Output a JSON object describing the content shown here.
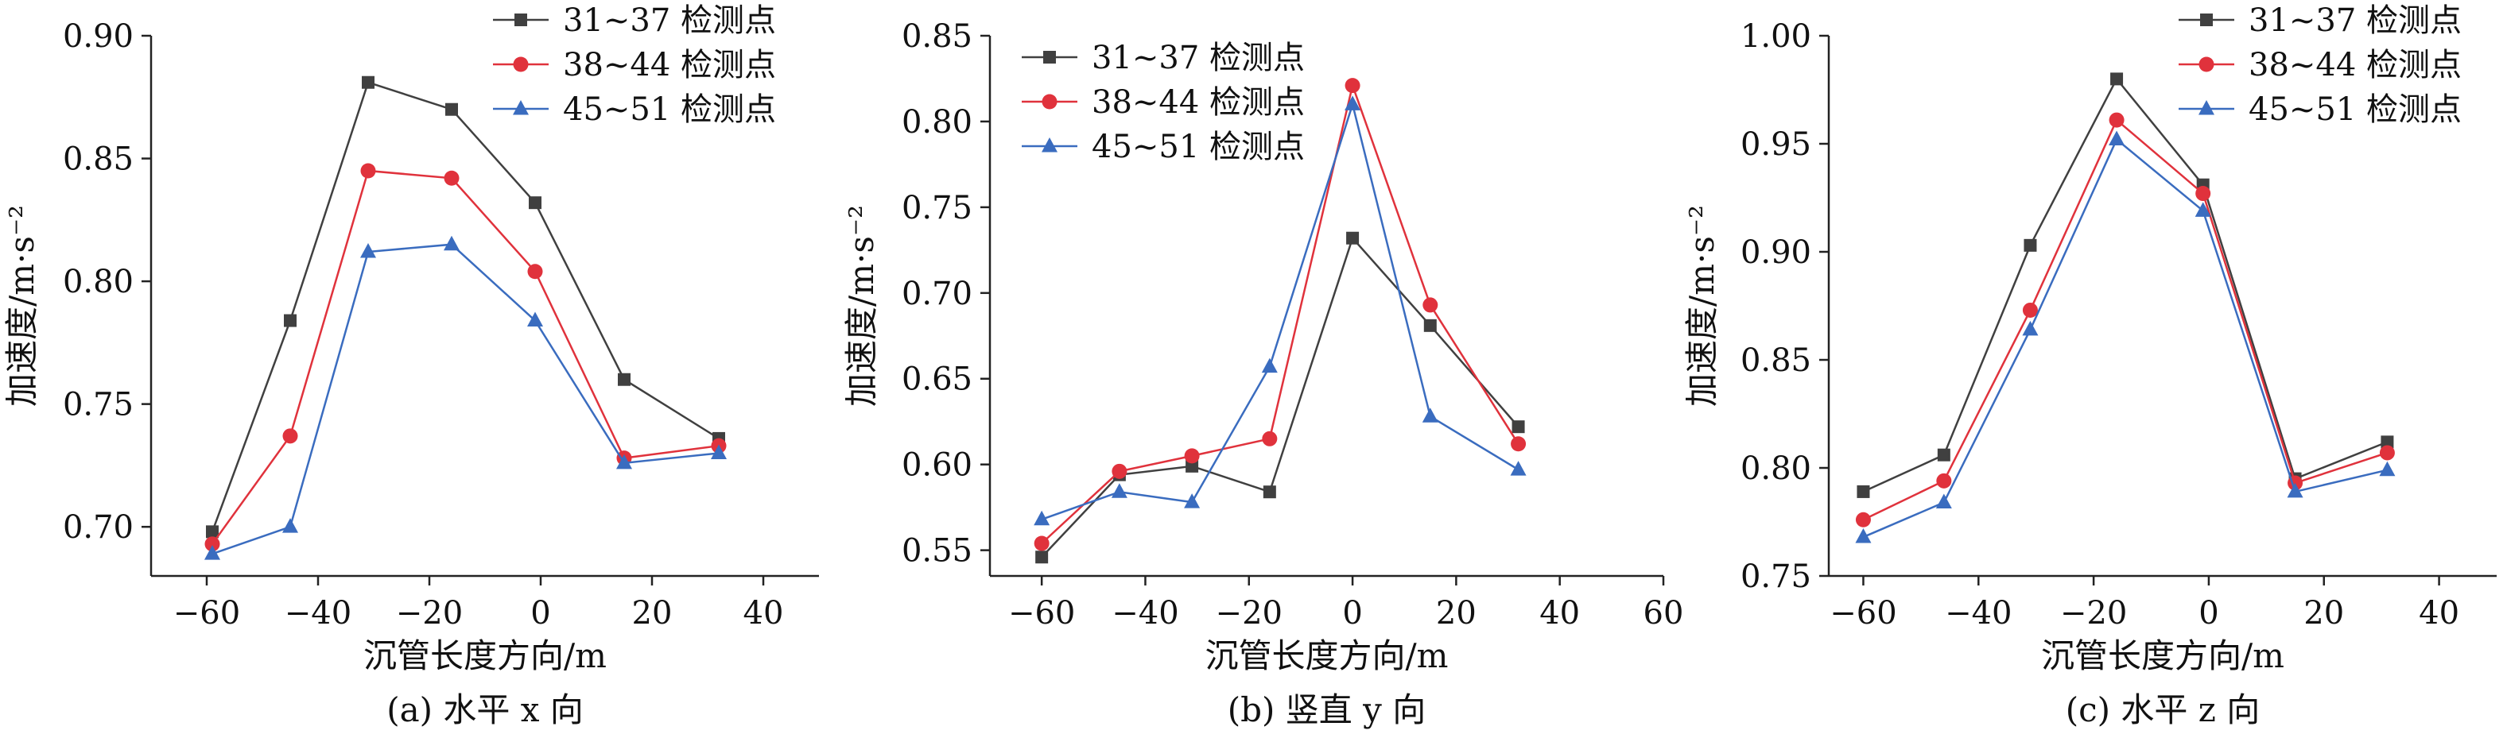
{
  "chart_data": [
    {
      "type": "line",
      "caption": "(a) 水平 x 向",
      "xlabel": "沉管长度方向/m",
      "ylabel": "加速度/m·s⁻²",
      "xlim": [
        -70,
        50
      ],
      "ylim": [
        0.68,
        0.9
      ],
      "xticks": [
        -60,
        -40,
        -20,
        0,
        20,
        40
      ],
      "yticks": [
        0.7,
        0.75,
        0.8,
        0.85,
        0.9
      ],
      "xtick_labels": [
        "−60",
        "−40",
        "−20",
        "0",
        "20",
        "40"
      ],
      "ytick_labels": [
        "0.70",
        "0.75",
        "0.80",
        "0.85",
        "0.90"
      ],
      "legend_position": "top-right",
      "grid": false,
      "series": [
        {
          "name": "31~37 检测点",
          "color": "#404040",
          "marker": "square",
          "x": [
            -59,
            -45,
            -31,
            -16,
            -1,
            15,
            32
          ],
          "y": [
            0.698,
            0.784,
            0.881,
            0.87,
            0.832,
            0.76,
            0.736
          ]
        },
        {
          "name": "38~44 检测点",
          "color": "#e0323c",
          "marker": "circle",
          "x": [
            -59,
            -45,
            -31,
            -16,
            -1,
            15,
            32
          ],
          "y": [
            0.693,
            0.737,
            0.845,
            0.842,
            0.804,
            0.728,
            0.733
          ]
        },
        {
          "name": "45~51 检测点",
          "color": "#3a6cbf",
          "marker": "triangle",
          "x": [
            -59,
            -45,
            -31,
            -16,
            -1,
            15,
            32
          ],
          "y": [
            0.689,
            0.7,
            0.812,
            0.815,
            0.784,
            0.726,
            0.73
          ]
        }
      ]
    },
    {
      "type": "line",
      "caption": "(b) 竖直 y 向",
      "xlabel": "沉管长度方向/m",
      "ylabel": "加速度/m·s⁻²",
      "xlim": [
        -70,
        60
      ],
      "ylim": [
        0.535,
        0.85
      ],
      "xticks": [
        -60,
        -40,
        -20,
        0,
        20,
        40,
        60
      ],
      "yticks": [
        0.55,
        0.6,
        0.65,
        0.7,
        0.75,
        0.8,
        0.85
      ],
      "xtick_labels": [
        "−60",
        "−40",
        "−20",
        "0",
        "20",
        "40",
        "60"
      ],
      "ytick_labels": [
        "0.55",
        "0.60",
        "0.65",
        "0.70",
        "0.75",
        "0.80",
        "0.85"
      ],
      "legend_position": "top-left",
      "grid": false,
      "series": [
        {
          "name": "31~37 检测点",
          "color": "#404040",
          "marker": "square",
          "x": [
            -60,
            -45,
            -31,
            -16,
            0,
            15,
            32
          ],
          "y": [
            0.546,
            0.594,
            0.599,
            0.584,
            0.732,
            0.681,
            0.622
          ]
        },
        {
          "name": "38~44 检测点",
          "color": "#e0323c",
          "marker": "circle",
          "x": [
            -60,
            -45,
            -31,
            -16,
            0,
            15,
            32
          ],
          "y": [
            0.554,
            0.596,
            0.605,
            0.615,
            0.821,
            0.693,
            0.612
          ]
        },
        {
          "name": "45~51 检测点",
          "color": "#3a6cbf",
          "marker": "triangle",
          "x": [
            -60,
            -45,
            -31,
            -16,
            0,
            15,
            32
          ],
          "y": [
            0.568,
            0.584,
            0.578,
            0.657,
            0.81,
            0.628,
            0.597
          ]
        }
      ]
    },
    {
      "type": "line",
      "caption": "(c) 水平 z 向",
      "xlabel": "沉管长度方向/m",
      "ylabel": "加速度/m·s⁻²",
      "xlim": [
        -66,
        50
      ],
      "ylim": [
        0.75,
        1.0
      ],
      "xticks": [
        -60,
        -40,
        -20,
        0,
        20,
        40
      ],
      "yticks": [
        0.75,
        0.8,
        0.85,
        0.9,
        0.95,
        1.0
      ],
      "xtick_labels": [
        "−60",
        "−40",
        "−20",
        "0",
        "20",
        "40"
      ],
      "ytick_labels": [
        "0.75",
        "0.80",
        "0.85",
        "0.90",
        "0.95",
        "1.00"
      ],
      "legend_position": "top-right",
      "grid": false,
      "series": [
        {
          "name": "31~37 检测点",
          "color": "#404040",
          "marker": "square",
          "x": [
            -60,
            -46,
            -31,
            -16,
            -1,
            15,
            31
          ],
          "y": [
            0.789,
            0.806,
            0.903,
            0.98,
            0.931,
            0.795,
            0.812
          ]
        },
        {
          "name": "38~44 检测点",
          "color": "#e0323c",
          "marker": "circle",
          "x": [
            -60,
            -46,
            -31,
            -16,
            -1,
            15,
            31
          ],
          "y": [
            0.776,
            0.794,
            0.873,
            0.961,
            0.927,
            0.793,
            0.807
          ]
        },
        {
          "name": "45~51 检测点",
          "color": "#3a6cbf",
          "marker": "triangle",
          "x": [
            -60,
            -46,
            -31,
            -16,
            -1,
            15,
            31
          ],
          "y": [
            0.768,
            0.784,
            0.864,
            0.952,
            0.919,
            0.789,
            0.799
          ]
        }
      ]
    }
  ]
}
